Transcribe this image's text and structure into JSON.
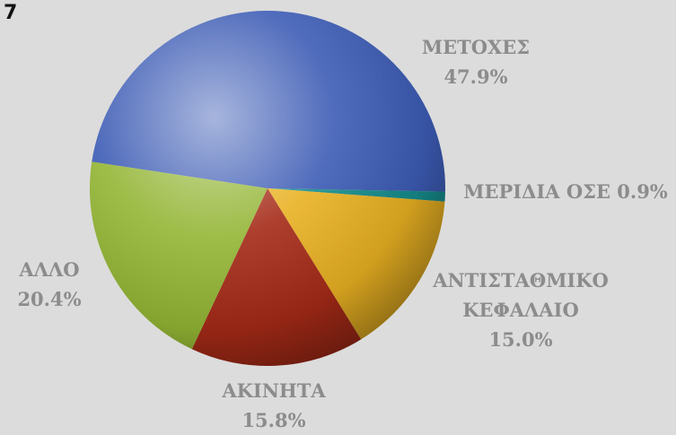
{
  "chart_data": {
    "type": "pie",
    "title": "7",
    "categories": [
      "ΜΕΤΟΧΕΣ",
      "ΜΕΡΙΔΙΑ ΟΣΕ",
      "ΑΝΤΙΣΤΑΘΜΙΚΟ ΚΕΦΑΛΑΙΟ",
      "ΑΚΙΝΗΤΑ",
      "ΑΛΛΟ"
    ],
    "values": [
      47.9,
      0.9,
      15.0,
      15.8,
      20.4
    ],
    "value_labels": [
      "47.9%",
      "0.9%",
      "15.0%",
      "15.8%",
      "20.4%"
    ],
    "colors": [
      "#3c5bb4",
      "#168c8c",
      "#e9b122",
      "#a52a17",
      "#93b534"
    ]
  }
}
